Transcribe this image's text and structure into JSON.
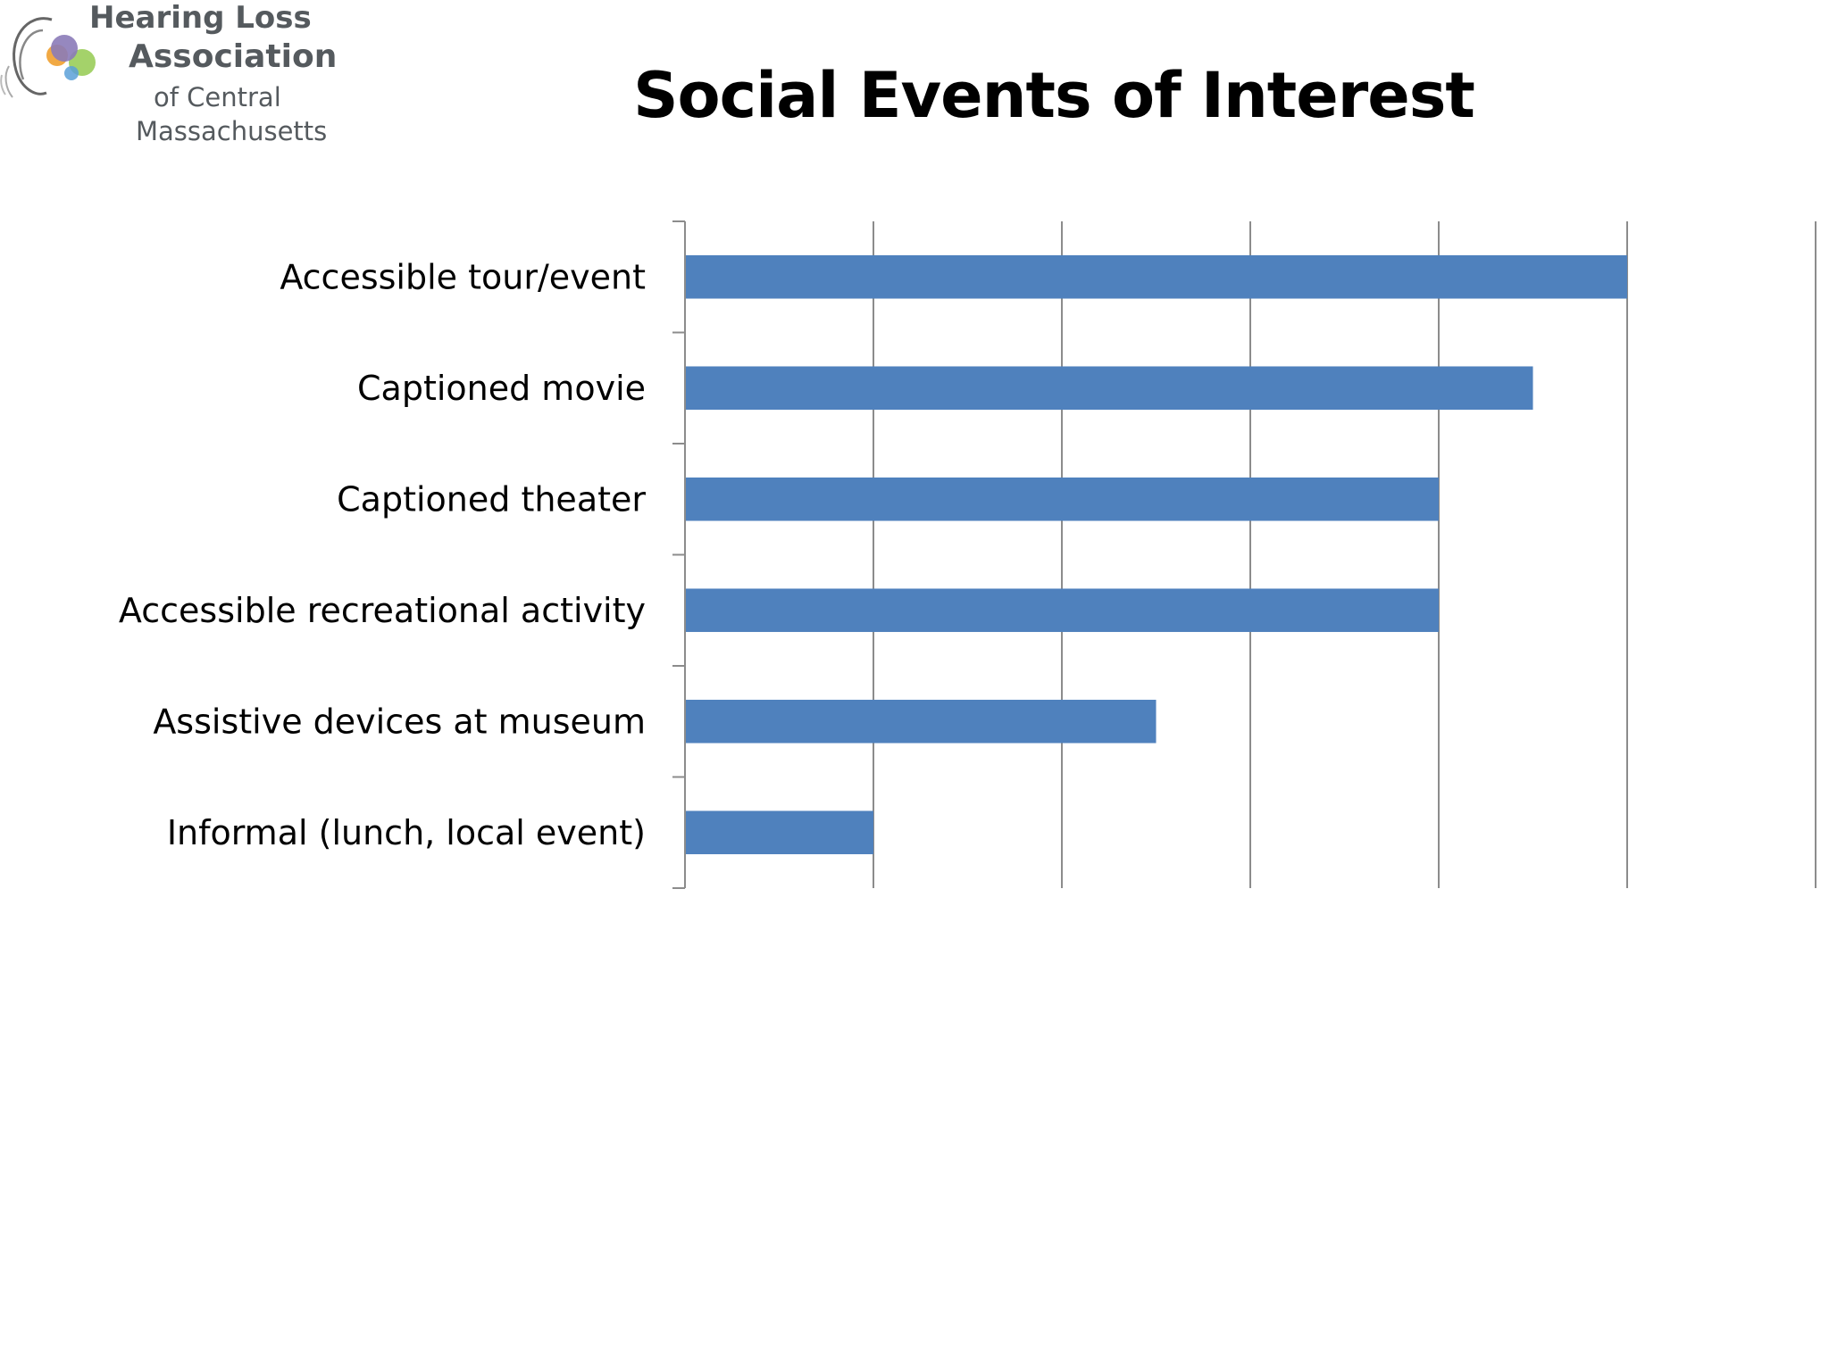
{
  "logo": {
    "line1": "Hearing Loss",
    "line2": "Association",
    "line3": "of Central",
    "line4": "Massachusetts",
    "colors": {
      "purple": "#8b7bb8",
      "green": "#9acd5a",
      "orange": "#f0a030",
      "blue": "#5aa0d8",
      "gray": "#555a5e"
    }
  },
  "chart_data": {
    "type": "bar",
    "orientation": "horizontal",
    "title": "Social Events of Interest",
    "categories": [
      "Accessible tour/event",
      "Captioned movie",
      "Captioned theater",
      "Accessible recreational activity",
      "Assistive devices at museum",
      "Informal (lunch, local event)"
    ],
    "values": [
      5,
      4.5,
      4,
      4,
      2.5,
      1
    ],
    "xlim": [
      0,
      6
    ],
    "x_tick_labels_shown": false,
    "grid": "vertical",
    "bar_color": "#4f81bd",
    "grid_color": "#8c8c8c",
    "legend": "none"
  }
}
